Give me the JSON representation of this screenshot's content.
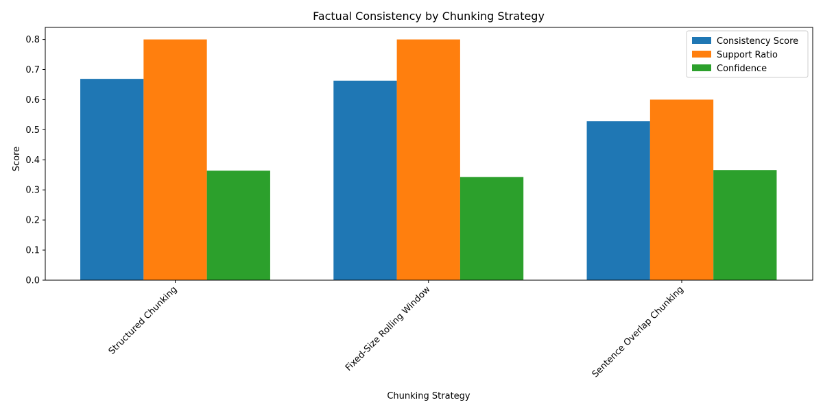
{
  "chart_data": {
    "type": "bar",
    "title": "Factual Consistency by Chunking Strategy",
    "xlabel": "Chunking Strategy",
    "ylabel": "Score",
    "categories": [
      "Structured Chunking",
      "Fixed-Size Rolling Window",
      "Sentence Overlap Chunking"
    ],
    "series": [
      {
        "name": "Consistency Score",
        "color": "#1f77b4",
        "values": [
          0.669,
          0.663,
          0.528
        ]
      },
      {
        "name": "Support Ratio",
        "color": "#ff7f0e",
        "values": [
          0.8,
          0.8,
          0.6
        ]
      },
      {
        "name": "Confidence",
        "color": "#2ca02c",
        "values": [
          0.364,
          0.343,
          0.366
        ]
      }
    ],
    "ylim": [
      0,
      0.84
    ],
    "yticks": [
      "0.0",
      "0.1",
      "0.2",
      "0.3",
      "0.4",
      "0.5",
      "0.6",
      "0.7",
      "0.8"
    ],
    "grid": false,
    "legend_position": "top-right"
  }
}
